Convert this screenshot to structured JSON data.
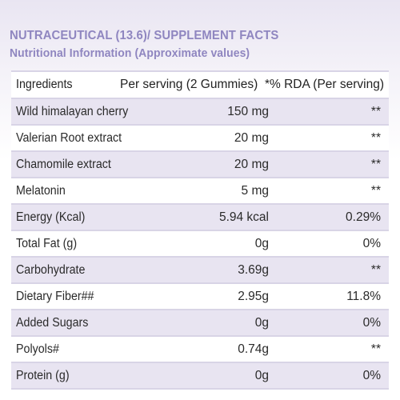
{
  "header": {
    "line1": "NUTRACEUTICAL (13.6)/ SUPPLEMENT FACTS",
    "line2": "Nutritional Information (Approximate values)"
  },
  "table": {
    "columns": [
      "Ingredients",
      "Per serving (2 Gummies)",
      "*% RDA (Per serving)"
    ],
    "rows": [
      {
        "ingredient": "Wild himalayan cherry",
        "per_serving": "150 mg",
        "rda": "**"
      },
      {
        "ingredient": "Valerian Root extract",
        "per_serving": "20 mg",
        "rda": "**"
      },
      {
        "ingredient": "Chamomile extract",
        "per_serving": "20 mg",
        "rda": "**"
      },
      {
        "ingredient": "Melatonin",
        "per_serving": "5 mg",
        "rda": "**"
      },
      {
        "ingredient": "Energy (Kcal)",
        "per_serving": "5.94 kcal",
        "rda": "0.29%"
      },
      {
        "ingredient": "Total Fat (g)",
        "per_serving": "0g",
        "rda": "0%"
      },
      {
        "ingredient": "Carbohydrate",
        "per_serving": "3.69g",
        "rda": "**"
      },
      {
        "ingredient": "Dietary Fiber##",
        "per_serving": "2.95g",
        "rda": "11.8%"
      },
      {
        "ingredient": "Added Sugars",
        "per_serving": "0g",
        "rda": "0%"
      },
      {
        "ingredient": "Polyols#",
        "per_serving": "0.74g",
        "rda": "**"
      },
      {
        "ingredient": "Protein (g)",
        "per_serving": "0g",
        "rda": "0%"
      }
    ]
  },
  "colors": {
    "header_text": "#8f86c0",
    "row_shade": "#e8e4f1",
    "rule": "#d8d4e6"
  }
}
